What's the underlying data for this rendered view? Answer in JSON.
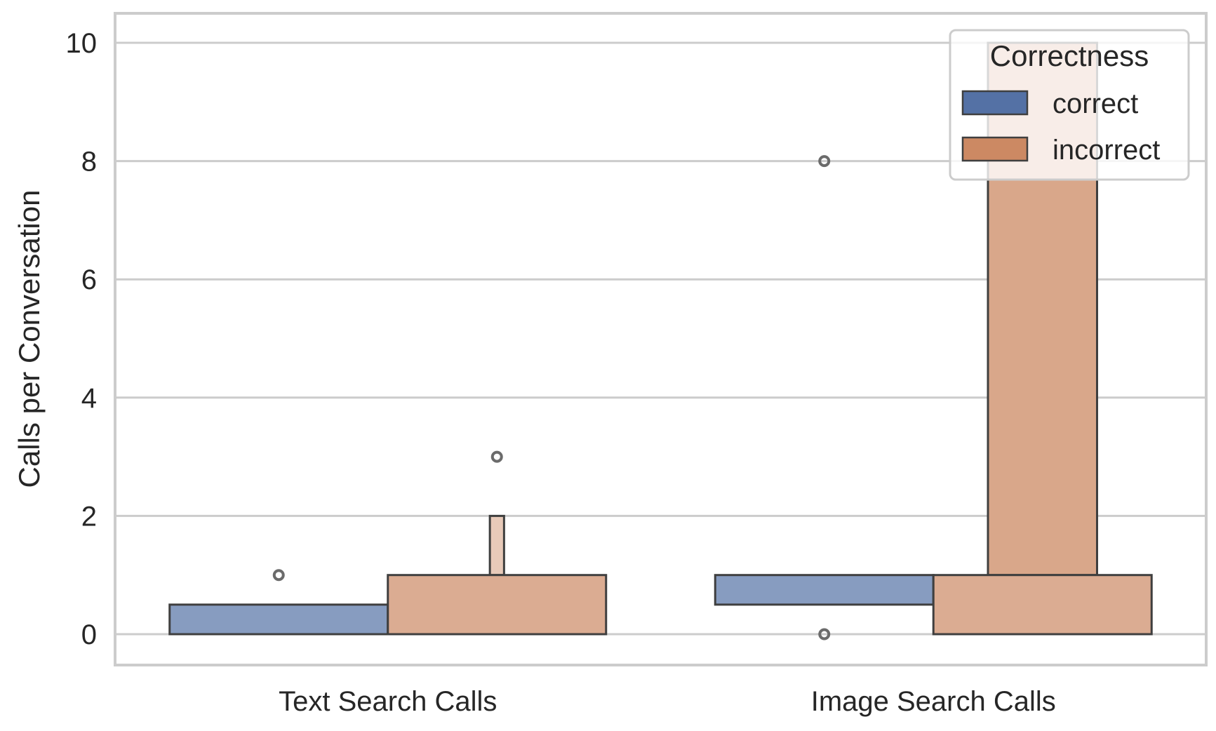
{
  "chart_data": {
    "type": "boxen",
    "title": "",
    "xlabel": "",
    "ylabel": "Calls per Conversation",
    "ylim": [
      -0.5,
      10.5
    ],
    "yticks": [
      0,
      2,
      4,
      6,
      8,
      10
    ],
    "grid": true,
    "categories": [
      "Text Search Calls",
      "Image Search Calls"
    ],
    "legend": {
      "title": "Correctness",
      "position": "top-right",
      "entries": [
        {
          "label": "correct",
          "color": "#5471a5"
        },
        {
          "label": "incorrect",
          "color": "#cc8963"
        }
      ]
    },
    "series": [
      {
        "name": "correct",
        "color": "#5471a5",
        "boxes": [
          [
            {
              "low": 0,
              "high": 0.5,
              "level": 1
            }
          ],
          [
            {
              "low": 0.5,
              "high": 1,
              "level": 1
            }
          ]
        ],
        "outliers": [
          [
            1
          ],
          [
            8,
            0
          ]
        ]
      },
      {
        "name": "incorrect",
        "color": "#cc8963",
        "boxes": [
          [
            {
              "low": 0,
              "high": 1,
              "level": 1
            },
            {
              "low": 1,
              "high": 2,
              "level": 3
            }
          ],
          [
            {
              "low": 0,
              "high": 1,
              "level": 1
            },
            {
              "low": 1,
              "high": 10,
              "level": 2
            }
          ]
        ],
        "outliers": [
          [
            3
          ],
          []
        ]
      }
    ]
  }
}
